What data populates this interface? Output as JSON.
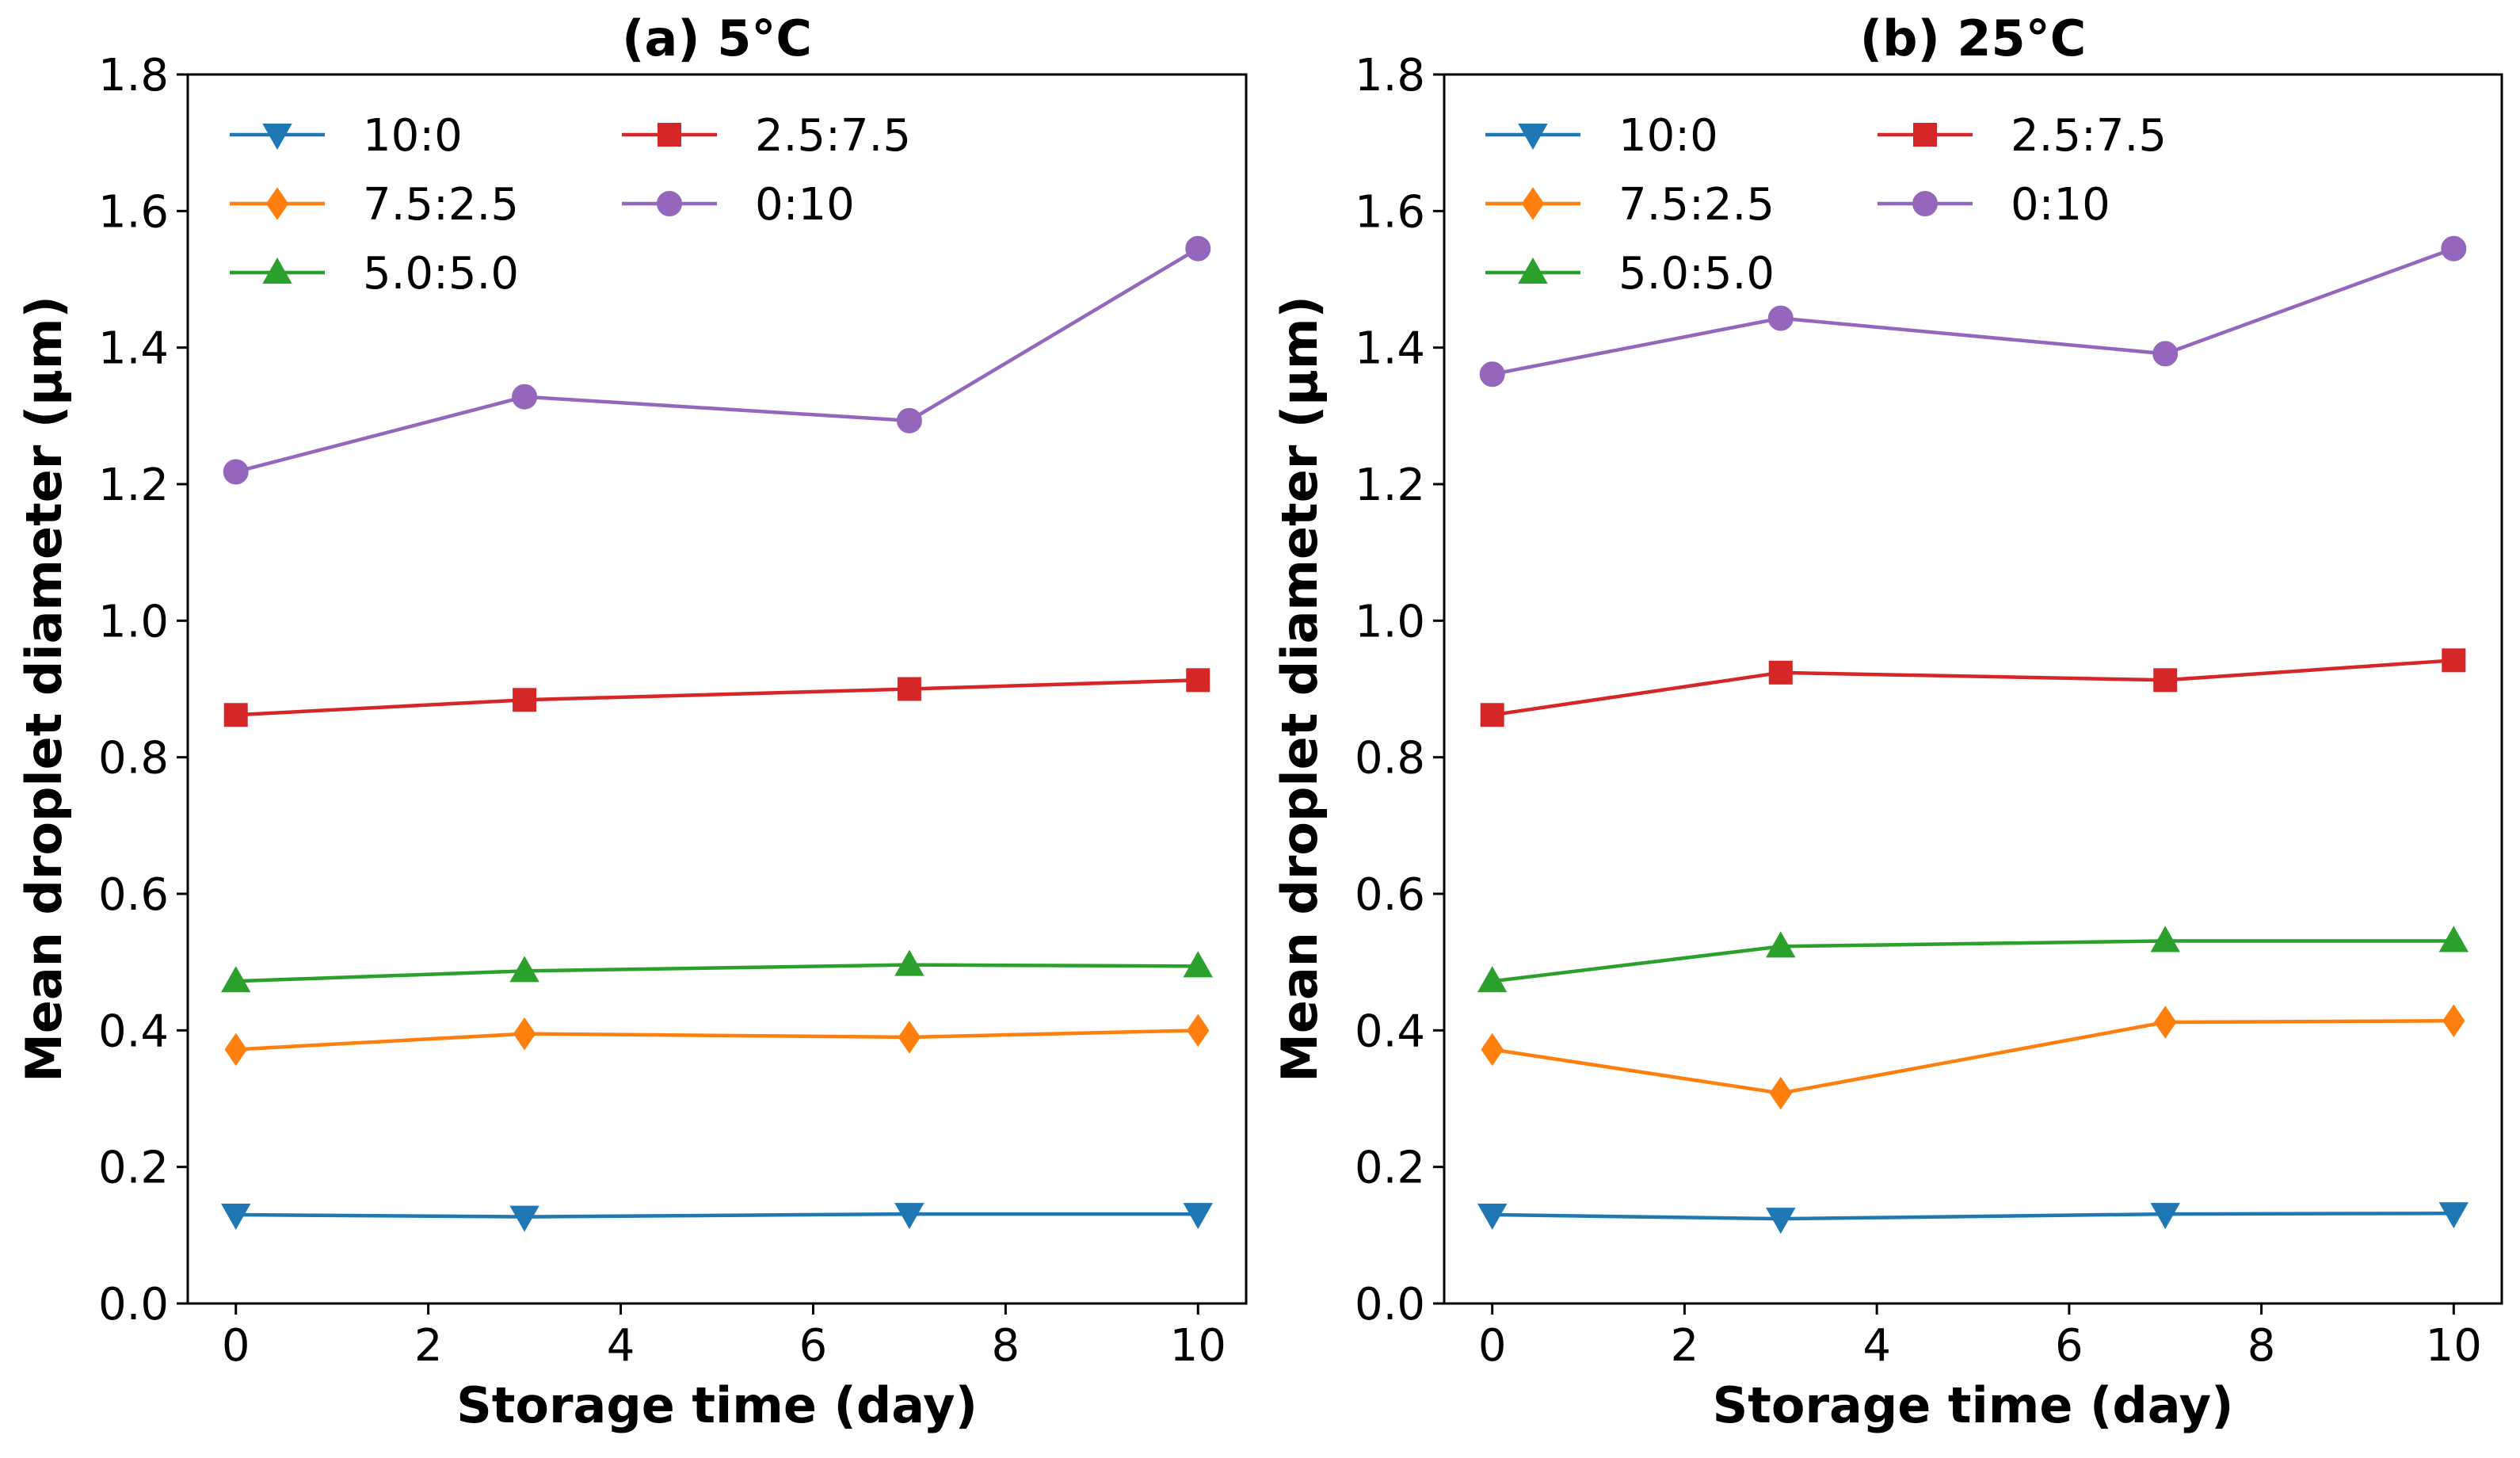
{
  "chart_data": [
    {
      "type": "line",
      "title": "(a) 5°C",
      "xlabel": "Storage time (day)",
      "ylabel": "Mean droplet diameter (μm)",
      "xlim": [
        -0.5,
        10.5
      ],
      "ylim": [
        0.0,
        1.8
      ],
      "xticks": [
        "0",
        "2",
        "4",
        "6",
        "8",
        "10"
      ],
      "yticks": [
        "0.0",
        "0.2",
        "0.4",
        "0.6",
        "0.8",
        "1.0",
        "1.2",
        "1.4",
        "1.6",
        "1.8"
      ],
      "grid": false,
      "legend_position": "top-left",
      "x": [
        0,
        3,
        7,
        10
      ],
      "series": [
        {
          "name": "10:0",
          "color": "#1f77b4",
          "marker": "triangle-down",
          "values": [
            0.13,
            0.127,
            0.131,
            0.131
          ]
        },
        {
          "name": "7.5:2.5",
          "color": "#ff7f0e",
          "marker": "diamond",
          "values": [
            0.372,
            0.395,
            0.39,
            0.4
          ]
        },
        {
          "name": "5.0:5.0",
          "color": "#2ca02c",
          "marker": "triangle-up",
          "values": [
            0.472,
            0.487,
            0.496,
            0.494
          ]
        },
        {
          "name": "2.5:7.5",
          "color": "#d62728",
          "marker": "square",
          "values": [
            0.862,
            0.884,
            0.9,
            0.913
          ]
        },
        {
          "name": "0:10",
          "color": "#9467bd",
          "marker": "circle",
          "values": [
            1.218,
            1.328,
            1.293,
            1.545
          ]
        }
      ]
    },
    {
      "type": "line",
      "title": "(b) 25°C",
      "xlabel": "Storage time (day)",
      "ylabel": "Mean droplet diameter (μm)",
      "xlim": [
        -0.5,
        10.5
      ],
      "ylim": [
        0.0,
        1.8
      ],
      "xticks": [
        "0",
        "2",
        "4",
        "6",
        "8",
        "10"
      ],
      "yticks": [
        "0.0",
        "0.2",
        "0.4",
        "0.6",
        "0.8",
        "1.0",
        "1.2",
        "1.4",
        "1.6",
        "1.8"
      ],
      "grid": false,
      "legend_position": "top-left",
      "x": [
        0,
        3,
        7,
        10
      ],
      "series": [
        {
          "name": "10:0",
          "color": "#1f77b4",
          "marker": "triangle-down",
          "values": [
            0.13,
            0.124,
            0.131,
            0.132
          ]
        },
        {
          "name": "7.5:2.5",
          "color": "#ff7f0e",
          "marker": "diamond",
          "values": [
            0.372,
            0.308,
            0.412,
            0.414
          ]
        },
        {
          "name": "5.0:5.0",
          "color": "#2ca02c",
          "marker": "triangle-up",
          "values": [
            0.472,
            0.523,
            0.531,
            0.531
          ]
        },
        {
          "name": "2.5:7.5",
          "color": "#d62728",
          "marker": "square",
          "values": [
            0.862,
            0.924,
            0.913,
            0.942
          ]
        },
        {
          "name": "0:10",
          "color": "#9467bd",
          "marker": "circle",
          "values": [
            1.361,
            1.443,
            1.391,
            1.545
          ]
        }
      ]
    }
  ]
}
